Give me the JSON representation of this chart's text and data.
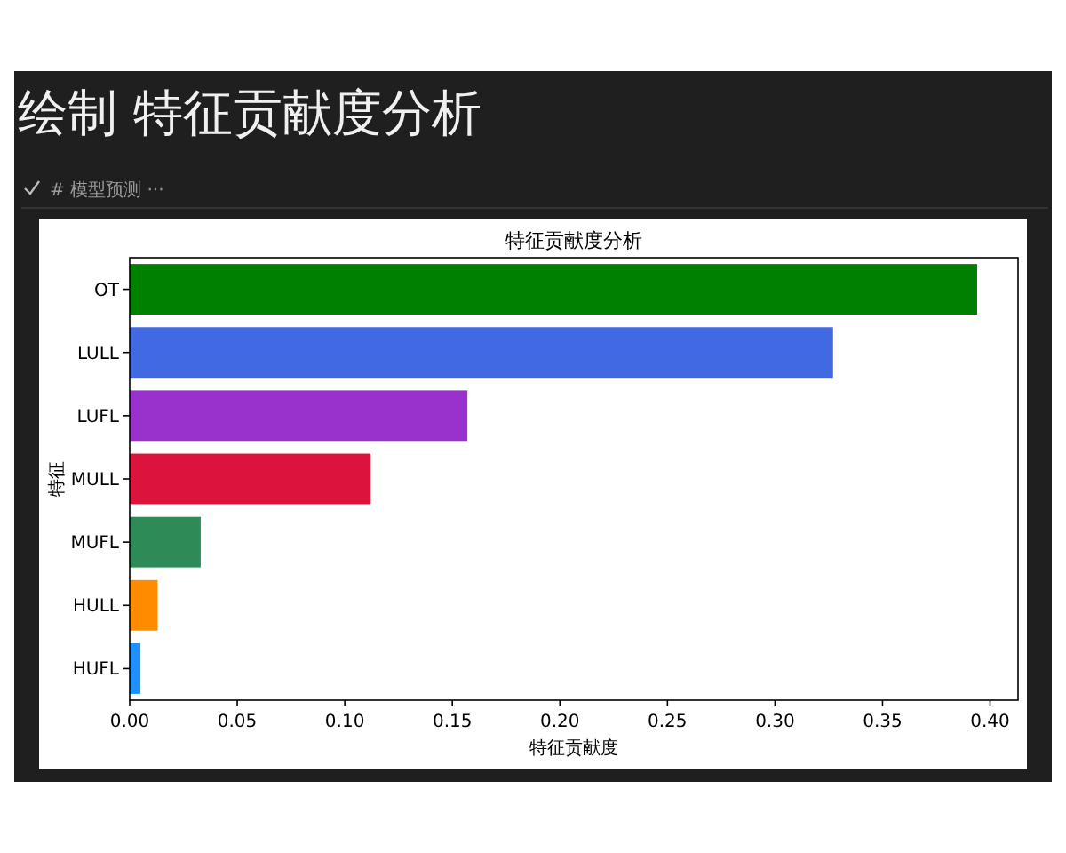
{
  "chart_data": {
    "type": "bar",
    "orientation": "horizontal",
    "title": "特征贡献度分析",
    "xlabel": "特征贡献度",
    "ylabel": "特征",
    "annotations": [
      "绘制 特征贡献度分析",
      "# 模型预测 ···"
    ],
    "categories": [
      "OT",
      "LULL",
      "LUFL",
      "MULL",
      "MUFL",
      "HULL",
      "HUFL"
    ],
    "values": [
      0.394,
      0.327,
      0.157,
      0.112,
      0.033,
      0.013,
      0.005
    ],
    "colors": [
      "#008000",
      "#4169e1",
      "#9932cc",
      "#dc143c",
      "#2e8b57",
      "#ff8c00",
      "#1e90ff"
    ],
    "xlim": [
      0,
      0.413
    ],
    "xticks": [
      {
        "value": 0,
        "label": "0.00"
      },
      {
        "value": 0.05,
        "label": "0.05"
      },
      {
        "value": 0.1,
        "label": "0.10"
      },
      {
        "value": 0.15,
        "label": "0.15"
      },
      {
        "value": 0.2,
        "label": "0.20"
      },
      {
        "value": 0.25,
        "label": "0.25"
      },
      {
        "value": 0.3,
        "label": "0.30"
      },
      {
        "value": 0.35,
        "label": "0.35"
      },
      {
        "value": 0.4,
        "label": "0.40"
      }
    ]
  }
}
